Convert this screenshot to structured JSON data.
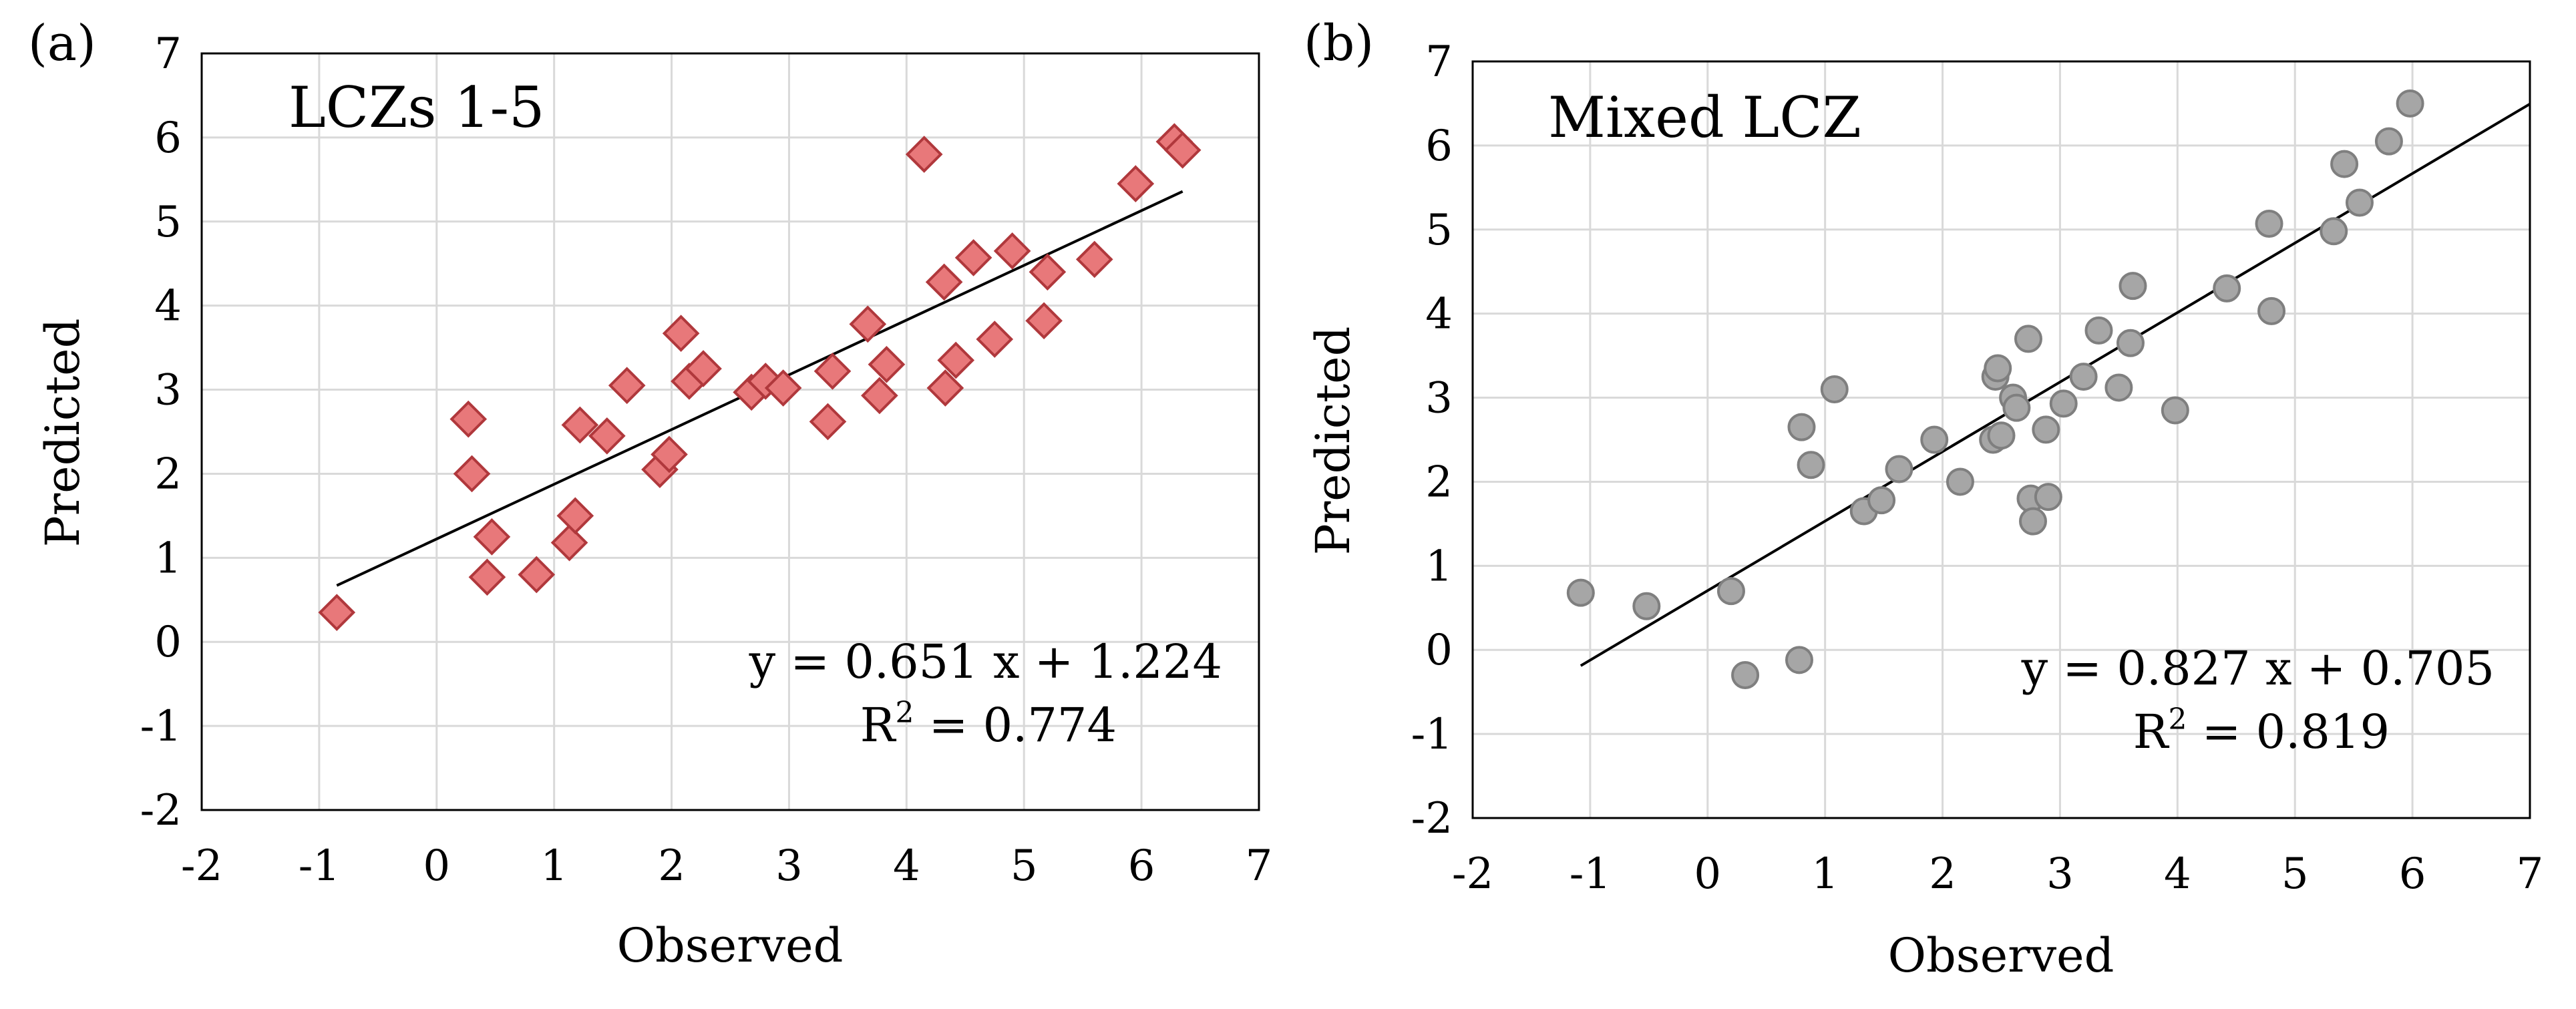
{
  "chart_data": [
    {
      "type": "scatter",
      "panel_label": "(a)",
      "title": "LCZs 1-5",
      "xlabel": "Observed",
      "ylabel": "Predicted",
      "xlim": [
        -2,
        7
      ],
      "ylim": [
        -2,
        7
      ],
      "xticks": [
        "-2",
        "-1",
        "0",
        "1",
        "2",
        "3",
        "4",
        "5",
        "6",
        "7"
      ],
      "yticks": [
        "-2",
        "-1",
        "0",
        "1",
        "2",
        "3",
        "4",
        "5",
        "6",
        "7"
      ],
      "grid": true,
      "marker": "diamond",
      "marker_fill": "#e8787a",
      "marker_stroke": "#b0383c",
      "x": [
        -0.85,
        0.27,
        0.3,
        0.43,
        0.47,
        0.85,
        1.13,
        1.18,
        1.22,
        1.45,
        1.62,
        1.9,
        1.98,
        2.08,
        2.15,
        2.27,
        2.68,
        2.8,
        2.95,
        3.33,
        3.37,
        3.67,
        3.77,
        3.83,
        4.15,
        4.32,
        4.33,
        4.42,
        4.57,
        4.75,
        4.9,
        5.17,
        5.2,
        5.6,
        5.95,
        6.28,
        6.35
      ],
      "y": [
        0.35,
        2.65,
        2.0,
        0.77,
        1.25,
        0.8,
        1.18,
        1.5,
        2.58,
        2.45,
        3.05,
        2.05,
        2.23,
        3.67,
        3.1,
        3.25,
        2.97,
        3.1,
        3.02,
        2.62,
        3.22,
        3.78,
        2.93,
        3.3,
        5.8,
        4.28,
        3.02,
        3.35,
        4.57,
        3.6,
        4.65,
        3.82,
        4.4,
        4.55,
        5.45,
        5.95,
        5.85
      ],
      "fit": {
        "slope": 0.651,
        "intercept": 1.224,
        "x_range": [
          -0.85,
          6.35
        ]
      },
      "equation": "y = 0.651 x + 1.224",
      "r2_label": "R",
      "r2_sup": "2",
      "r2_value": " = 0.774"
    },
    {
      "type": "scatter",
      "panel_label": "(b)",
      "title": "Mixed LCZ",
      "xlabel": "Observed",
      "ylabel": "Predicted",
      "xlim": [
        -2,
        7
      ],
      "ylim": [
        -2,
        7
      ],
      "xticks": [
        "-2",
        "-1",
        "0",
        "1",
        "2",
        "3",
        "4",
        "5",
        "6",
        "7"
      ],
      "yticks": [
        "-2",
        "-1",
        "0",
        "1",
        "2",
        "3",
        "4",
        "5",
        "6",
        "7"
      ],
      "grid": true,
      "marker": "circle",
      "marker_fill": "#a6a6a6",
      "marker_stroke": "#7f7f7f",
      "x": [
        -1.08,
        -0.52,
        0.2,
        0.32,
        0.78,
        0.8,
        0.88,
        1.08,
        1.33,
        1.48,
        1.63,
        1.93,
        2.15,
        2.43,
        2.45,
        2.47,
        2.5,
        2.6,
        2.63,
        2.73,
        2.75,
        2.77,
        2.88,
        2.9,
        3.03,
        3.2,
        3.33,
        3.5,
        3.6,
        3.62,
        3.98,
        4.42,
        4.78,
        4.8,
        5.33,
        5.42,
        5.55,
        5.8,
        5.98
      ],
      "y": [
        0.68,
        0.52,
        0.7,
        -0.3,
        -0.12,
        2.65,
        2.2,
        3.1,
        1.65,
        1.78,
        2.15,
        2.5,
        2.0,
        2.5,
        3.25,
        3.35,
        2.55,
        3.0,
        2.88,
        3.7,
        1.8,
        1.53,
        2.62,
        1.82,
        2.93,
        3.25,
        3.8,
        3.12,
        3.65,
        4.33,
        2.85,
        4.3,
        5.07,
        4.03,
        4.98,
        5.78,
        5.32,
        6.05,
        6.5
      ],
      "fit": {
        "slope": 0.827,
        "intercept": 0.705,
        "x_range": [
          -1.08,
          7.0
        ]
      },
      "equation": "y = 0.827 x + 0.705",
      "r2_label": "R",
      "r2_sup": "2",
      "r2_value": " = 0.819"
    }
  ]
}
